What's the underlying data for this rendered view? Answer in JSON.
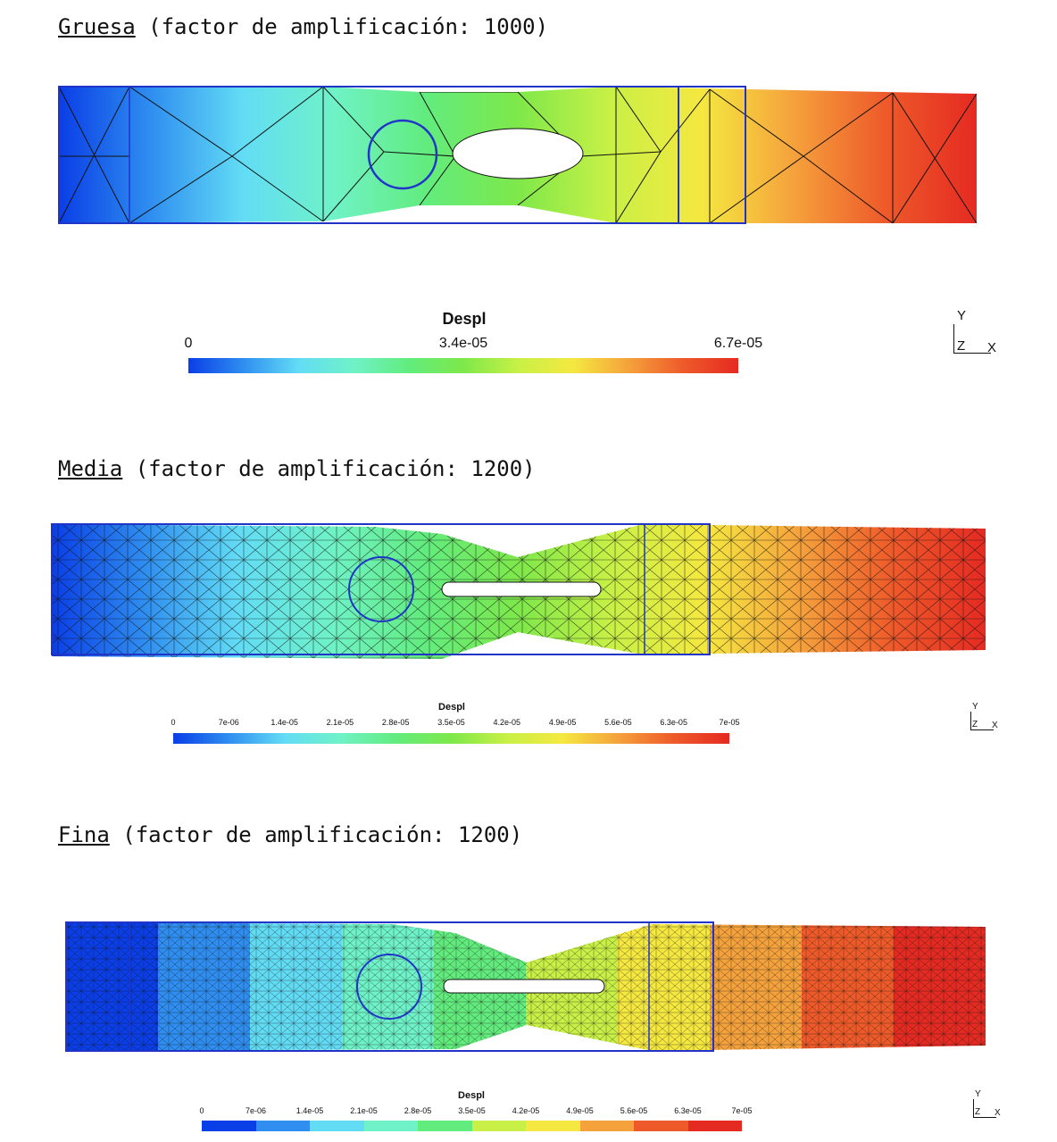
{
  "sections": [
    {
      "mesh_name": "Gruesa",
      "suffix": " (factor de amplificación: 1000)",
      "colorbar_title": "Despl",
      "ticks": [
        "0",
        "3.4e-05",
        "6.7e-05"
      ],
      "range": [
        0,
        6.7e-05
      ],
      "bar_style": "smooth"
    },
    {
      "mesh_name": "Media",
      "suffix": " (factor de amplificación: 1200)",
      "colorbar_title": "Despl",
      "ticks": [
        "0",
        "7e-06",
        "1.4e-05",
        "2.1e-05",
        "2.8e-05",
        "3.5e-05",
        "4.2e-05",
        "4.9e-05",
        "5.6e-05",
        "6.3e-05",
        "7e-05"
      ],
      "range": [
        0,
        7e-05
      ],
      "bar_style": "smooth"
    },
    {
      "mesh_name": "Fina",
      "suffix": " (factor de amplificación: 1200)",
      "colorbar_title": "Despl",
      "ticks": [
        "0",
        "7e-06",
        "1.4e-05",
        "2.1e-05",
        "2.8e-05",
        "3.5e-05",
        "4.2e-05",
        "4.9e-05",
        "5.6e-05",
        "6.3e-05",
        "7e-05"
      ],
      "range": [
        0,
        7e-05
      ],
      "bar_style": "banded"
    }
  ],
  "axes_triad": {
    "y": "Y",
    "z": "Z",
    "x": "X"
  },
  "colors": {
    "colormap": [
      "#0a3ee6",
      "#2f8ef0",
      "#62dcf5",
      "#6ff2c7",
      "#62ec7e",
      "#7ee84a",
      "#c8f046",
      "#f5e840",
      "#f5a23c",
      "#ee5a2a",
      "#e52a22"
    ],
    "outline": "#2035c8",
    "mesh_line": "#111111"
  }
}
